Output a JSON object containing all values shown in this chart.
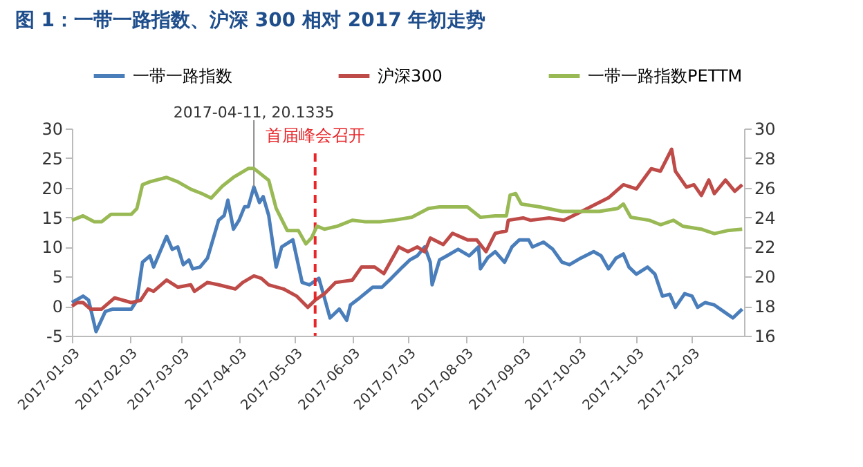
{
  "chart_data": {
    "type": "line",
    "title": "图 1：一带一路指数、沪深 300 相对 2017 年初走势",
    "xlim": [
      "2017-01-03",
      "2017-12-31"
    ],
    "xticks": [
      "2017-01-03",
      "2017-02-03",
      "2017-03-03",
      "2017-04-03",
      "2017-05-03",
      "2017-06-03",
      "2017-07-03",
      "2017-08-03",
      "2017-09-03",
      "2017-10-03",
      "2017-11-03",
      "2017-12-03"
    ],
    "ylim": [
      -5,
      30
    ],
    "yticks": [
      -5,
      0,
      5,
      10,
      15,
      20,
      25,
      30
    ],
    "y2lim": [
      16,
      30
    ],
    "y2ticks": [
      16,
      18,
      20,
      22,
      24,
      26,
      28,
      30
    ],
    "grid": false,
    "legend": "top",
    "line_style": "solid",
    "marker": "none",
    "ref_lines": [
      {
        "axis": "x",
        "value": "2017-05-14",
        "label": "首届峰会召开",
        "color": "#e8262a",
        "line_style": "dashed"
      }
    ],
    "annotations": [
      {
        "text": "2017-04-11, 20.1335",
        "x": "2017-04-11",
        "y": 20.1335
      }
    ],
    "series": [
      {
        "name": "一带一路指数",
        "color": "#4a7ebb",
        "x": [
          "2017-01-03",
          "2017-01-09",
          "2017-01-12",
          "2017-01-16",
          "2017-01-21",
          "2017-01-25",
          "2017-02-04",
          "2017-02-07",
          "2017-02-10",
          "2017-02-14",
          "2017-02-16",
          "2017-02-23",
          "2017-02-26",
          "2017-03-01",
          "2017-03-04",
          "2017-03-07",
          "2017-03-09",
          "2017-03-13",
          "2017-03-17",
          "2017-03-23",
          "2017-03-26",
          "2017-03-28",
          "2017-03-31",
          "2017-04-03",
          "2017-04-06",
          "2017-04-08",
          "2017-04-11",
          "2017-04-14",
          "2017-04-16",
          "2017-04-19",
          "2017-04-23",
          "2017-04-26",
          "2017-05-02",
          "2017-05-07",
          "2017-05-11",
          "2017-05-16",
          "2017-05-19",
          "2017-05-22",
          "2017-05-27",
          "2017-05-31",
          "2017-06-02",
          "2017-06-07",
          "2017-06-14",
          "2017-06-19",
          "2017-06-24",
          "2017-06-30",
          "2017-07-04",
          "2017-07-08",
          "2017-07-12",
          "2017-07-15",
          "2017-07-16",
          "2017-07-20",
          "2017-07-24",
          "2017-07-30",
          "2017-08-05",
          "2017-08-10",
          "2017-08-11",
          "2017-08-15",
          "2017-08-19",
          "2017-08-24",
          "2017-08-28",
          "2017-09-01",
          "2017-09-06",
          "2017-09-08",
          "2017-09-14",
          "2017-09-19",
          "2017-09-24",
          "2017-09-28",
          "2017-10-04",
          "2017-10-11",
          "2017-10-15",
          "2017-10-19",
          "2017-10-23",
          "2017-10-27",
          "2017-10-30",
          "2017-11-03",
          "2017-11-09",
          "2017-11-13",
          "2017-11-17",
          "2017-11-21",
          "2017-11-24",
          "2017-11-29",
          "2017-12-03",
          "2017-12-06",
          "2017-12-10",
          "2017-12-15",
          "2017-12-20",
          "2017-12-25",
          "2017-12-30"
        ],
        "values": [
          0.6,
          1.7,
          1.0,
          -4.3,
          -0.9,
          -0.5,
          -0.5,
          1.0,
          7.4,
          8.5,
          6.6,
          11.8,
          9.6,
          10,
          7,
          7.8,
          6.3,
          6.6,
          8.1,
          14.5,
          15.3,
          17.9,
          13,
          14.5,
          16.8,
          16.8,
          20.1335,
          17.5,
          18.5,
          15.3,
          6.6,
          10,
          11.2,
          4,
          3.6,
          4.7,
          1.4,
          -2,
          -0.5,
          -2.4,
          0.2,
          1.4,
          3.2,
          3.2,
          4.7,
          6.6,
          7.8,
          8.5,
          10,
          7.4,
          3.6,
          7.8,
          8.5,
          9.6,
          8.5,
          10,
          6.3,
          8.2,
          9.2,
          7.4,
          10,
          11.2,
          11.2,
          10,
          10.8,
          9.6,
          7.4,
          7,
          8.1,
          9.2,
          8.5,
          6.3,
          8.1,
          8.8,
          6.6,
          5.4,
          6.6,
          5.4,
          1.7,
          2,
          -0.2,
          2.1,
          1.7,
          -0.2,
          0.6,
          0.2,
          -0.9,
          -2,
          -0.5
        ]
      },
      {
        "name": "沪深300",
        "color": "#be4b48",
        "x": [
          "2017-01-03",
          "2017-01-06",
          "2017-01-09",
          "2017-01-13",
          "2017-01-19",
          "2017-01-26",
          "2017-02-04",
          "2017-02-09",
          "2017-02-13",
          "2017-02-16",
          "2017-02-23",
          "2017-03-01",
          "2017-03-08",
          "2017-03-10",
          "2017-03-17",
          "2017-03-23",
          "2017-04-01",
          "2017-04-05",
          "2017-04-11",
          "2017-04-15",
          "2017-04-19",
          "2017-04-27",
          "2017-05-04",
          "2017-05-10",
          "2017-05-14",
          "2017-05-19",
          "2017-05-25",
          "2017-06-03",
          "2017-06-08",
          "2017-06-15",
          "2017-06-20",
          "2017-06-28",
          "2017-07-03",
          "2017-07-08",
          "2017-07-12",
          "2017-07-15",
          "2017-07-22",
          "2017-07-27",
          "2017-08-04",
          "2017-08-09",
          "2017-08-14",
          "2017-08-19",
          "2017-08-25",
          "2017-08-26",
          "2017-09-03",
          "2017-09-07",
          "2017-09-17",
          "2017-09-25",
          "2017-10-02",
          "2017-10-12",
          "2017-10-19",
          "2017-10-27",
          "2017-11-03",
          "2017-11-11",
          "2017-11-16",
          "2017-11-22",
          "2017-11-24",
          "2017-11-30",
          "2017-12-04",
          "2017-12-08",
          "2017-12-12",
          "2017-12-15",
          "2017-12-21",
          "2017-12-26",
          "2017-12-30"
        ],
        "values": [
          0,
          0.6,
          0.6,
          -0.5,
          -0.5,
          1.4,
          0.6,
          1.0,
          2.9,
          2.5,
          4.4,
          3.2,
          3.6,
          2.5,
          4,
          3.6,
          2.9,
          4,
          5.1,
          4.7,
          3.6,
          2.9,
          1.7,
          -0.2,
          1.0,
          2.1,
          4,
          4.4,
          6.6,
          6.6,
          5.5,
          10,
          9.2,
          10,
          9.2,
          11.5,
          10.4,
          12.3,
          11.2,
          11.2,
          9.2,
          12.3,
          12.7,
          14.5,
          14.9,
          14.5,
          14.9,
          14.5,
          15.6,
          17.2,
          18.3,
          20.5,
          19.8,
          23.2,
          22.8,
          26.5,
          22.8,
          20.1,
          20.5,
          18.7,
          21.3,
          19,
          21.3,
          19.4,
          20.5
        ]
      },
      {
        "name": "一带一路指数PETTM",
        "color": "#98b954",
        "axis": "y2",
        "x": [
          "2017-01-03",
          "2017-01-09",
          "2017-01-15",
          "2017-01-19",
          "2017-01-24",
          "2017-02-04",
          "2017-02-07",
          "2017-02-10",
          "2017-02-14",
          "2017-02-23",
          "2017-03-01",
          "2017-03-08",
          "2017-03-14",
          "2017-03-19",
          "2017-03-25",
          "2017-03-31",
          "2017-04-08",
          "2017-04-11",
          "2017-04-19",
          "2017-04-23",
          "2017-04-29",
          "2017-05-05",
          "2017-05-09",
          "2017-05-12",
          "2017-05-15",
          "2017-05-19",
          "2017-05-26",
          "2017-06-03",
          "2017-06-10",
          "2017-06-18",
          "2017-06-25",
          "2017-07-05",
          "2017-07-14",
          "2017-07-20",
          "2017-07-27",
          "2017-08-04",
          "2017-08-11",
          "2017-08-19",
          "2017-08-25",
          "2017-08-27",
          "2017-08-30",
          "2017-09-02",
          "2017-09-12",
          "2017-09-24",
          "2017-10-03",
          "2017-10-14",
          "2017-10-24",
          "2017-10-27",
          "2017-10-31",
          "2017-11-10",
          "2017-11-16",
          "2017-11-23",
          "2017-11-28",
          "2017-12-08",
          "2017-12-15",
          "2017-12-22",
          "2017-12-30"
        ],
        "values": [
          23.8,
          24.1,
          23.7,
          23.7,
          24.2,
          24.2,
          24.6,
          26.2,
          26.4,
          26.7,
          26.4,
          25.9,
          25.6,
          25.3,
          26.1,
          26.7,
          27.3,
          27.3,
          26.5,
          24.6,
          23.1,
          23.1,
          22.2,
          22.6,
          23.4,
          23.2,
          23.4,
          23.8,
          23.7,
          23.7,
          23.8,
          24.0,
          24.6,
          24.7,
          24.7,
          24.7,
          24.0,
          24.1,
          24.1,
          25.5,
          25.6,
          24.9,
          24.7,
          24.4,
          24.4,
          24.4,
          24.6,
          24.9,
          24.0,
          23.8,
          23.5,
          23.8,
          23.4,
          23.2,
          22.9,
          23.1,
          23.2
        ]
      }
    ]
  }
}
